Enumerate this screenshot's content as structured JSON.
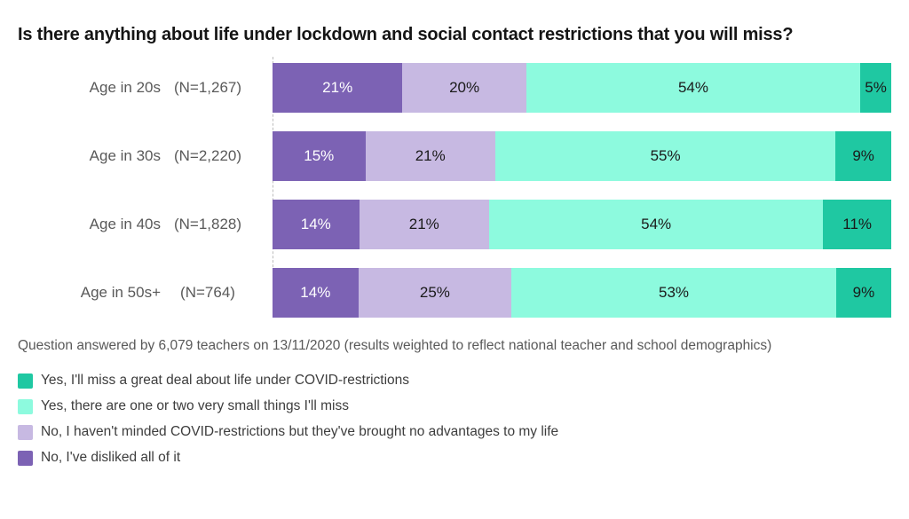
{
  "title": "Is there anything about life under lockdown and social contact restrictions that you will miss?",
  "footnote": "Question answered by 6,079 teachers on 13/11/2020 (results weighted to reflect national teacher and school demographics)",
  "chart_data": {
    "type": "bar",
    "orientation": "horizontal",
    "stacked": true,
    "xlim": [
      0,
      100
    ],
    "value_suffix": "%",
    "grid": false,
    "legend_position": "bottom-left",
    "categories": [
      "Age in 20s",
      "Age in 30s",
      "Age in 40s",
      "Age in 50s+"
    ],
    "category_sample_sizes": [
      "(N=1,267)",
      "(N=2,220)",
      "(N=1,828)",
      "(N=764)"
    ],
    "series": [
      {
        "name": "No, I've disliked all of it",
        "color": "#7c62b4",
        "label_color": "#ffffff",
        "values": [
          21,
          15,
          14,
          14
        ]
      },
      {
        "name": "No, I haven't minded COVID-restrictions but they've brought no advantages to my life",
        "color": "#c7b9e2",
        "label_color": "#1a1a1a",
        "values": [
          20,
          21,
          21,
          25
        ]
      },
      {
        "name": "Yes, there are one or two very small things I'll miss",
        "color": "#8dfade",
        "label_color": "#1a1a1a",
        "values": [
          54,
          55,
          54,
          53
        ]
      },
      {
        "name": "Yes, I'll miss a great deal about life under COVID-restrictions",
        "color": "#1fc8a2",
        "label_color": "#1a1a1a",
        "values": [
          5,
          9,
          11,
          9
        ]
      }
    ]
  },
  "legend": {
    "items": [
      {
        "label": "Yes, I'll miss a great deal about life under COVID-restrictions",
        "color": "#1fc8a2"
      },
      {
        "label": "Yes, there are one or two very small things I'll miss",
        "color": "#8dfade"
      },
      {
        "label": "No, I haven't minded COVID-restrictions but they've brought no advantages to my life",
        "color": "#c7b9e2"
      },
      {
        "label": "No, I've disliked all of it",
        "color": "#7c62b4"
      }
    ]
  }
}
